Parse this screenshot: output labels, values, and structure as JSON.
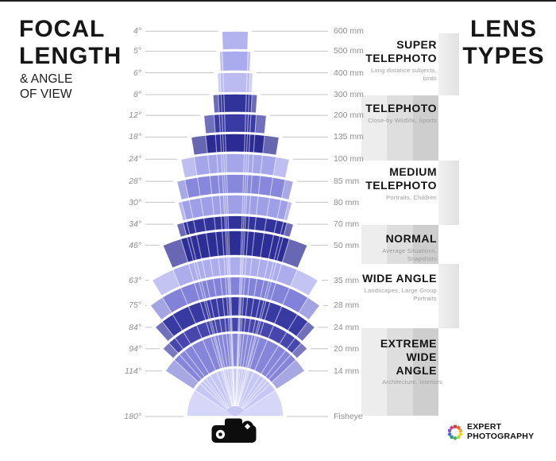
{
  "page": {
    "title": "FOCAL\nLENGTH",
    "subtitle": "& ANGLE\nOF VIEW",
    "right_title": "LENS\nTYPES"
  },
  "lens_sections": [
    {
      "title": "SUPER TELEPHOTO",
      "subtitle": "Long distance subjects, birds",
      "style": "white"
    },
    {
      "title": "TELEPHOTO",
      "subtitle": "Close-by Wildlife, Sports",
      "style": "gray"
    },
    {
      "title": "MEDIUM TELEPHOTO",
      "subtitle": "Portraits, Children",
      "style": "white"
    },
    {
      "title": "NORMAL",
      "subtitle": "Average Situations, Snapshots",
      "style": "gray"
    },
    {
      "title": "WIDE ANGLE",
      "subtitle": "Landscapes, Large Group Portraits",
      "style": "white"
    },
    {
      "title": "EXTREME WIDE ANGLE",
      "subtitle": "Architecture, Interiors",
      "style": "gray"
    }
  ],
  "logo": {
    "text": "EXPERT\nPHOTOGRAPHY",
    "colors": [
      "#d6342c",
      "#e8622a",
      "#f4a023",
      "#fccf0a",
      "#b8d432",
      "#4caf50",
      "#1a9988",
      "#3f6ad8",
      "#7a52c7",
      "#c23b8e"
    ]
  },
  "chart_data": {
    "type": "fan-diagram",
    "title": "Focal Length & Angle of View vs Lens Types",
    "legend_position": "none",
    "apex": {
      "x": 296,
      "y": 524
    },
    "x_left_axis_label": "angle of view (degrees)",
    "x_right_axis_label": "focal length (mm)",
    "series": [
      {
        "angle_deg": 4,
        "angle_label": "4°",
        "focal_label": "600 mm",
        "outer_radius": 485,
        "color": "#b3b3f0"
      },
      {
        "angle_deg": 5,
        "angle_label": "5°",
        "focal_label": "500 mm",
        "outer_radius": 460,
        "color": "#aaaaee"
      },
      {
        "angle_deg": 6,
        "angle_label": "6°",
        "focal_label": "400 mm",
        "outer_radius": 433,
        "color": "#bbbbf2"
      },
      {
        "angle_deg": 8,
        "angle_label": "8°",
        "focal_label": "300 mm",
        "outer_radius": 406,
        "color": "#32329b"
      },
      {
        "angle_deg": 12,
        "angle_label": "12°",
        "focal_label": "200 mm",
        "outer_radius": 381,
        "color": "#3a3aa4"
      },
      {
        "angle_deg": 18,
        "angle_label": "18°",
        "focal_label": "135 mm",
        "outer_radius": 356,
        "color": "#2b2b93"
      },
      {
        "angle_deg": 24,
        "angle_label": "24°",
        "focal_label": "100 mm",
        "outer_radius": 331,
        "color": "#a5a5ea"
      },
      {
        "angle_deg": 28,
        "angle_label": "28°",
        "focal_label": "85 mm",
        "outer_radius": 305,
        "color": "#8787db"
      },
      {
        "angle_deg": 30,
        "angle_label": "30°",
        "focal_label": "80 mm",
        "outer_radius": 279,
        "color": "#9f9fe7"
      },
      {
        "angle_deg": 34,
        "angle_label": "34°",
        "focal_label": "70 mm",
        "outer_radius": 253,
        "color": "#32329b"
      },
      {
        "angle_deg": 46,
        "angle_label": "46°",
        "focal_label": "50 mm",
        "outer_radius": 234,
        "color": "#2d2d96"
      },
      {
        "angle_deg": 63,
        "angle_label": "63°",
        "focal_label": "35 mm",
        "outer_radius": 201,
        "color": "#adadee"
      },
      {
        "angle_deg": 75,
        "angle_label": "75°",
        "focal_label": "28 mm",
        "outer_radius": 176,
        "color": "#8282d9"
      },
      {
        "angle_deg": 84,
        "angle_label": "84°",
        "focal_label": "24 mm",
        "outer_radius": 151,
        "color": "#3939a2"
      },
      {
        "angle_deg": 94,
        "angle_label": "94°",
        "focal_label": "20 mm",
        "outer_radius": 125,
        "color": "#4646ac"
      },
      {
        "angle_deg": 114,
        "angle_label": "114°",
        "focal_label": "14 mm",
        "outer_radius": 105,
        "color": "#8585da"
      },
      {
        "angle_deg": 180,
        "angle_label": "180°",
        "focal_label": "Fisheye",
        "outer_radius": 61,
        "color": "#c7c7f6"
      }
    ],
    "label_line_color": "#c4c4c4",
    "ray_color": "#ffffff",
    "camera_color": "#0d0d0d"
  }
}
